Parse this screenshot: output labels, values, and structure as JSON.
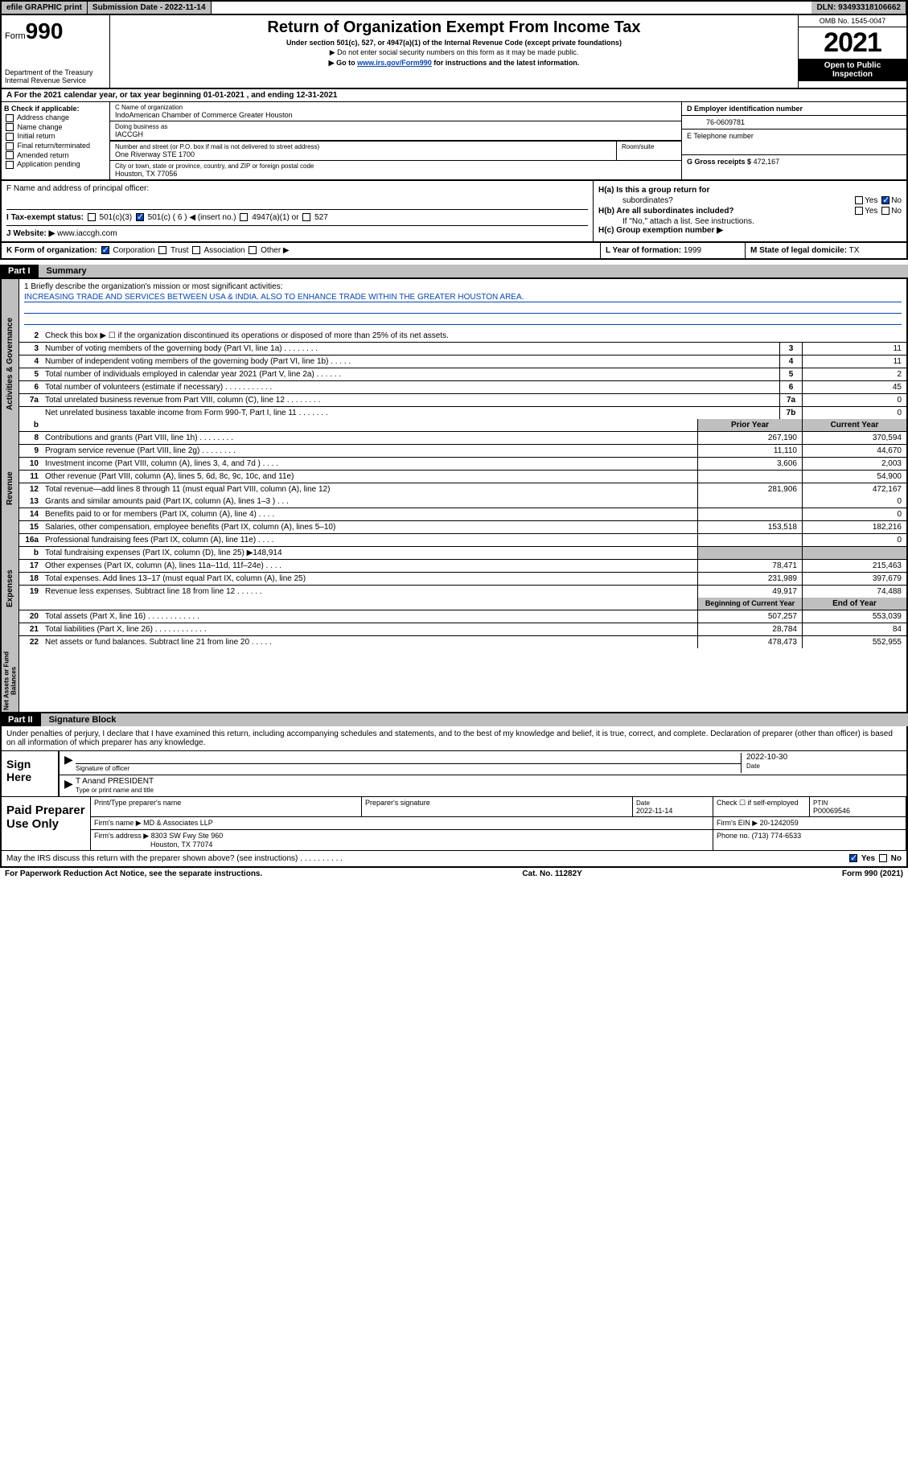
{
  "topbar": {
    "efile": "efile GRAPHIC print",
    "submission": "Submission Date - 2022-11-14",
    "dln": "DLN: 93493318106662"
  },
  "header": {
    "form_label": "Form",
    "form_num": "990",
    "dept": "Department of the Treasury",
    "irs": "Internal Revenue Service",
    "title": "Return of Organization Exempt From Income Tax",
    "sub1": "Under section 501(c), 527, or 4947(a)(1) of the Internal Revenue Code (except private foundations)",
    "sub2": "▶ Do not enter social security numbers on this form as it may be made public.",
    "sub3_pre": "▶ Go to ",
    "sub3_link": "www.irs.gov/Form990",
    "sub3_post": " for instructions and the latest information.",
    "omb": "OMB No. 1545-0047",
    "year": "2021",
    "inspect1": "Open to Public",
    "inspect2": "Inspection"
  },
  "line_a": "A For the 2021 calendar year, or tax year beginning 01-01-2021     , and ending 12-31-2021",
  "section_b": {
    "title": "B Check if applicable:",
    "opts": [
      "Address change",
      "Name change",
      "Initial return",
      "Final return/terminated",
      "Amended return",
      "Application pending"
    ]
  },
  "section_c": {
    "label": "C Name of organization",
    "name": "IndoAmerican Chamber of Commerce Greater Houston",
    "dba_label": "Doing business as",
    "dba": "IACCGH",
    "addr_label": "Number and street (or P.O. box if mail is not delivered to street address)",
    "room_label": "Room/suite",
    "addr": "One Riverway STE 1700",
    "city_label": "City or town, state or province, country, and ZIP or foreign postal code",
    "city": "Houston, TX  77056"
  },
  "section_d": {
    "label": "D Employer identification number",
    "value": "76-0609781"
  },
  "section_e": {
    "label": "E Telephone number"
  },
  "section_g": {
    "label": "G Gross receipts $",
    "value": "472,167"
  },
  "section_f": {
    "label": "F  Name and address of principal officer:"
  },
  "section_h": {
    "ha": "H(a)  Is this a group return for",
    "ha2": "subordinates?",
    "hb": "H(b)  Are all subordinates included?",
    "hb2": "If \"No,\" attach a list. See instructions.",
    "hc": "H(c)  Group exemption number ▶",
    "yes": "Yes",
    "no": "No"
  },
  "section_i": {
    "label": "Tax-exempt status:",
    "o1": "501(c)(3)",
    "o2": "501(c) ( 6 ) ◀ (insert no.)",
    "o3": "4947(a)(1) or",
    "o4": "527"
  },
  "section_j": {
    "label": "Website: ▶",
    "value": "www.iaccgh.com"
  },
  "section_k": {
    "label": "K Form of organization:",
    "o1": "Corporation",
    "o2": "Trust",
    "o3": "Association",
    "o4": "Other ▶"
  },
  "section_l": {
    "label": "L Year of formation:",
    "value": "1999"
  },
  "section_m": {
    "label": "M State of legal domicile:",
    "value": "TX"
  },
  "part1": {
    "label": "Part I",
    "title": "Summary"
  },
  "mission": {
    "line1": "1  Briefly describe the organization's mission or most significant activities:",
    "text": "INCREASING TRADE AND SERVICES BETWEEN USA & INDIA. ALSO TO ENHANCE TRADE WITHIN THE GREATER HOUSTON AREA."
  },
  "line2": "Check this box ▶ ☐  if the organization discontinued its operations or disposed of more than 25% of its net assets.",
  "vtabs": {
    "ag": "Activities & Governance",
    "rev": "Revenue",
    "exp": "Expenses",
    "na": "Net Assets or Fund Balances"
  },
  "lines_ag": [
    {
      "n": "3",
      "d": "Number of voting members of the governing body (Part VI, line 1a)  .     .     .     .     .     .     .     .",
      "cn": "3",
      "v": "11"
    },
    {
      "n": "4",
      "d": "Number of independent voting members of the governing body (Part VI, line 1b)  .     .     .     .     .",
      "cn": "4",
      "v": "11"
    },
    {
      "n": "5",
      "d": "Total number of individuals employed in calendar year 2021 (Part V, line 2a)  .     .     .     .     .     .",
      "cn": "5",
      "v": "2"
    },
    {
      "n": "6",
      "d": "Total number of volunteers (estimate if necessary)  .     .     .     .     .     .     .     .     .     .     .",
      "cn": "6",
      "v": "45"
    },
    {
      "n": "7a",
      "d": "Total unrelated business revenue from Part VIII, column (C), line 12  .     .     .     .     .     .     .     .",
      "cn": "7a",
      "v": "0"
    },
    {
      "n": "",
      "d": "Net unrelated business taxable income from Form 990-T, Part I, line 11  .     .     .     .     .     .     .",
      "cn": "7b",
      "v": "0"
    }
  ],
  "col_hdr": {
    "prior": "Prior Year",
    "current": "Current Year"
  },
  "lines_rev": [
    {
      "n": "8",
      "d": "Contributions and grants (Part VIII, line 1h)   .     .     .     .     .     .     .     .",
      "p": "267,190",
      "c": "370,594"
    },
    {
      "n": "9",
      "d": "Program service revenue (Part VIII, line 2g)   .     .     .     .     .     .     .     .",
      "p": "11,110",
      "c": "44,670"
    },
    {
      "n": "10",
      "d": "Investment income (Part VIII, column (A), lines 3, 4, and 7d )   .     .     .     .",
      "p": "3,606",
      "c": "2,003"
    },
    {
      "n": "11",
      "d": "Other revenue (Part VIII, column (A), lines 5, 6d, 8c, 9c, 10c, and 11e)",
      "p": "",
      "c": "54,900"
    },
    {
      "n": "12",
      "d": "Total revenue—add lines 8 through 11 (must equal Part VIII, column (A), line 12)",
      "p": "281,906",
      "c": "472,167"
    }
  ],
  "lines_exp": [
    {
      "n": "13",
      "d": "Grants and similar amounts paid (Part IX, column (A), lines 1–3 )  .     .     .",
      "p": "",
      "c": "0"
    },
    {
      "n": "14",
      "d": "Benefits paid to or for members (Part IX, column (A), line 4)  .     .     .     .",
      "p": "",
      "c": "0"
    },
    {
      "n": "15",
      "d": "Salaries, other compensation, employee benefits (Part IX, column (A), lines 5–10)",
      "p": "153,518",
      "c": "182,216"
    },
    {
      "n": "16a",
      "d": "Professional fundraising fees (Part IX, column (A), line 11e)  .     .     .     .",
      "p": "",
      "c": "0"
    },
    {
      "n": "b",
      "d": "Total fundraising expenses (Part IX, column (D), line 25) ▶148,914",
      "p": "shaded",
      "c": "shaded"
    },
    {
      "n": "17",
      "d": "Other expenses (Part IX, column (A), lines 11a–11d, 11f–24e)  .     .     .     .",
      "p": "78,471",
      "c": "215,463"
    },
    {
      "n": "18",
      "d": "Total expenses. Add lines 13–17 (must equal Part IX, column (A), line 25)",
      "p": "231,989",
      "c": "397,679"
    },
    {
      "n": "19",
      "d": "Revenue less expenses. Subtract line 18 from line 12  .     .     .     .     .     .",
      "p": "49,917",
      "c": "74,488"
    }
  ],
  "col_hdr2": {
    "begin": "Beginning of Current Year",
    "end": "End of Year"
  },
  "lines_na": [
    {
      "n": "20",
      "d": "Total assets (Part X, line 16)  .     .     .     .     .     .     .     .     .     .     .     .",
      "p": "507,257",
      "c": "553,039"
    },
    {
      "n": "21",
      "d": "Total liabilities (Part X, line 26)  .     .     .     .     .     .     .     .     .     .     .     .",
      "p": "28,784",
      "c": "84"
    },
    {
      "n": "22",
      "d": "Net assets or fund balances. Subtract line 21 from line 20  .     .     .     .     .",
      "p": "478,473",
      "c": "552,955"
    }
  ],
  "part2": {
    "label": "Part II",
    "title": "Signature Block"
  },
  "sig": {
    "penalty": "Under penalties of perjury, I declare that I have examined this return, including accompanying schedules and statements, and to the best of my knowledge and belief, it is true, correct, and complete. Declaration of preparer (other than officer) is based on all information of which preparer has any knowledge.",
    "sign_here": "Sign Here",
    "sig_officer": "Signature of officer",
    "date": "Date",
    "sig_date": "2022-10-30",
    "name": "T Anand PRESIDENT",
    "name_label": "Type or print name and title",
    "paid": "Paid Preparer Use Only",
    "prep_name_label": "Print/Type preparer's name",
    "prep_sig_label": "Preparer's signature",
    "prep_date_label": "Date",
    "prep_date": "2022-11-14",
    "check_label": "Check ☐ if self-employed",
    "ptin_label": "PTIN",
    "ptin": "P00069546",
    "firm_name_label": "Firm's name     ▶",
    "firm_name": "MD & Associates LLP",
    "firm_ein_label": "Firm's EIN ▶",
    "firm_ein": "20-1242059",
    "firm_addr_label": "Firm's address ▶",
    "firm_addr1": "8303 SW Fwy Ste 960",
    "firm_addr2": "Houston, TX  77074",
    "phone_label": "Phone no.",
    "phone": "(713) 774-6533",
    "discuss": "May the IRS discuss this return with the preparer shown above? (see instructions)  .     .     .     .     .     .     .     .     .     .",
    "yes": "Yes",
    "no": "No"
  },
  "footer": {
    "left": "For Paperwork Reduction Act Notice, see the separate instructions.",
    "mid": "Cat. No. 11282Y",
    "right": "Form 990 (2021)"
  }
}
